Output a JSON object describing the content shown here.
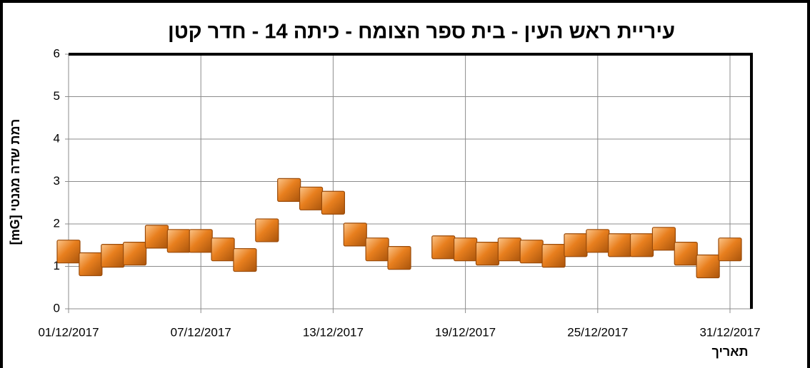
{
  "chart_data": {
    "type": "scatter",
    "title": "עיריית ראש העין - בית ספר הצומח - כיתה 14 - חדר קטן",
    "y_label": "רמת שדה מגנטי  [mG]",
    "x_label": "תאריך",
    "x": [
      "01/12/2017",
      "02/12/2017",
      "03/12/2017",
      "04/12/2017",
      "05/12/2017",
      "06/12/2017",
      "07/12/2017",
      "08/12/2017",
      "09/12/2017",
      "10/12/2017",
      "11/12/2017",
      "12/12/2017",
      "13/12/2017",
      "14/12/2017",
      "15/12/2017",
      "16/12/2017",
      "17/12/2017",
      "18/12/2017",
      "19/12/2017",
      "20/12/2017",
      "21/12/2017",
      "22/12/2017",
      "23/12/2017",
      "24/12/2017",
      "25/12/2017",
      "26/12/2017",
      "27/12/2017",
      "28/12/2017",
      "29/12/2017",
      "30/12/2017",
      "31/12/2017"
    ],
    "series": [
      {
        "name": "mG",
        "color": "#e87f1e",
        "values": [
          1.35,
          1.05,
          1.25,
          1.3,
          1.7,
          1.6,
          1.6,
          1.4,
          1.15,
          1.85,
          2.8,
          2.6,
          2.5,
          1.75,
          1.4,
          1.2,
          null,
          1.45,
          1.4,
          1.3,
          1.4,
          1.35,
          1.25,
          1.5,
          1.6,
          1.5,
          1.5,
          1.65,
          1.3,
          1.0,
          1.4
        ]
      }
    ],
    "xticks": [
      "01/12/2017",
      "07/12/2017",
      "13/12/2017",
      "19/12/2017",
      "25/12/2017",
      "31/12/2017"
    ],
    "ylim": [
      0,
      6
    ],
    "yticks": [
      0,
      1,
      2,
      3,
      4,
      5,
      6
    ],
    "grid": true
  }
}
